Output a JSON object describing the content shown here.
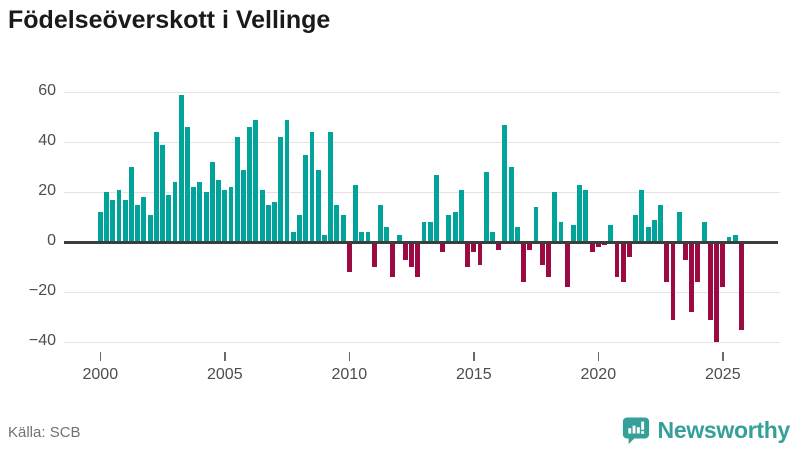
{
  "title": "Födelseöverskott i Vellinge",
  "source": "Källa: SCB",
  "brand": {
    "name": "Newsworthy",
    "color": "#35a09a"
  },
  "colors": {
    "positive": "#00a49b",
    "negative": "#9b0a42",
    "axis": "#3d3d3d",
    "grid": "#e4e4e4",
    "tick_label": "#4d4d4d",
    "title": "#1a1a1a",
    "source": "#71717b"
  },
  "chart_data": {
    "type": "bar",
    "title": "Födelseöverskott i Vellinge",
    "xlabel": "",
    "ylabel": "",
    "interval": "quarter",
    "x_start": "2000Q1",
    "x_end": "2025Q4",
    "x_tick_labels": [
      "2000",
      "2005",
      "2010",
      "2015",
      "2020",
      "2025"
    ],
    "y_ticks": [
      60,
      40,
      20,
      0,
      -20,
      -40
    ],
    "ylim": [
      -45,
      63
    ],
    "grid": true,
    "legend": "none",
    "positive_color": "#00a49b",
    "negative_color": "#9b0a42",
    "values": [
      12,
      20,
      17,
      21,
      17,
      30,
      15,
      18,
      11,
      44,
      39,
      19,
      24,
      59,
      46,
      22,
      24,
      20,
      32,
      25,
      21,
      22,
      42,
      29,
      46,
      49,
      21,
      15,
      16,
      42,
      49,
      4,
      11,
      35,
      44,
      29,
      3,
      44,
      15,
      11,
      -12,
      23,
      4,
      4,
      -10,
      15,
      6,
      -14,
      3,
      -7,
      -10,
      -14,
      8,
      8,
      27,
      -4,
      11,
      12,
      21,
      -10,
      -4,
      -9,
      28,
      4,
      -3,
      47,
      30,
      6,
      -16,
      -3,
      14,
      -9,
      -14,
      20,
      8,
      -18,
      7,
      23,
      21,
      -4,
      -2,
      -1,
      7,
      -14,
      -16,
      -6,
      11,
      21,
      6,
      9,
      15,
      -16,
      -31,
      12,
      -7,
      -28,
      -16,
      8,
      -31,
      -40,
      -18,
      2,
      3,
      -35
    ],
    "source": "Källa: SCB"
  }
}
